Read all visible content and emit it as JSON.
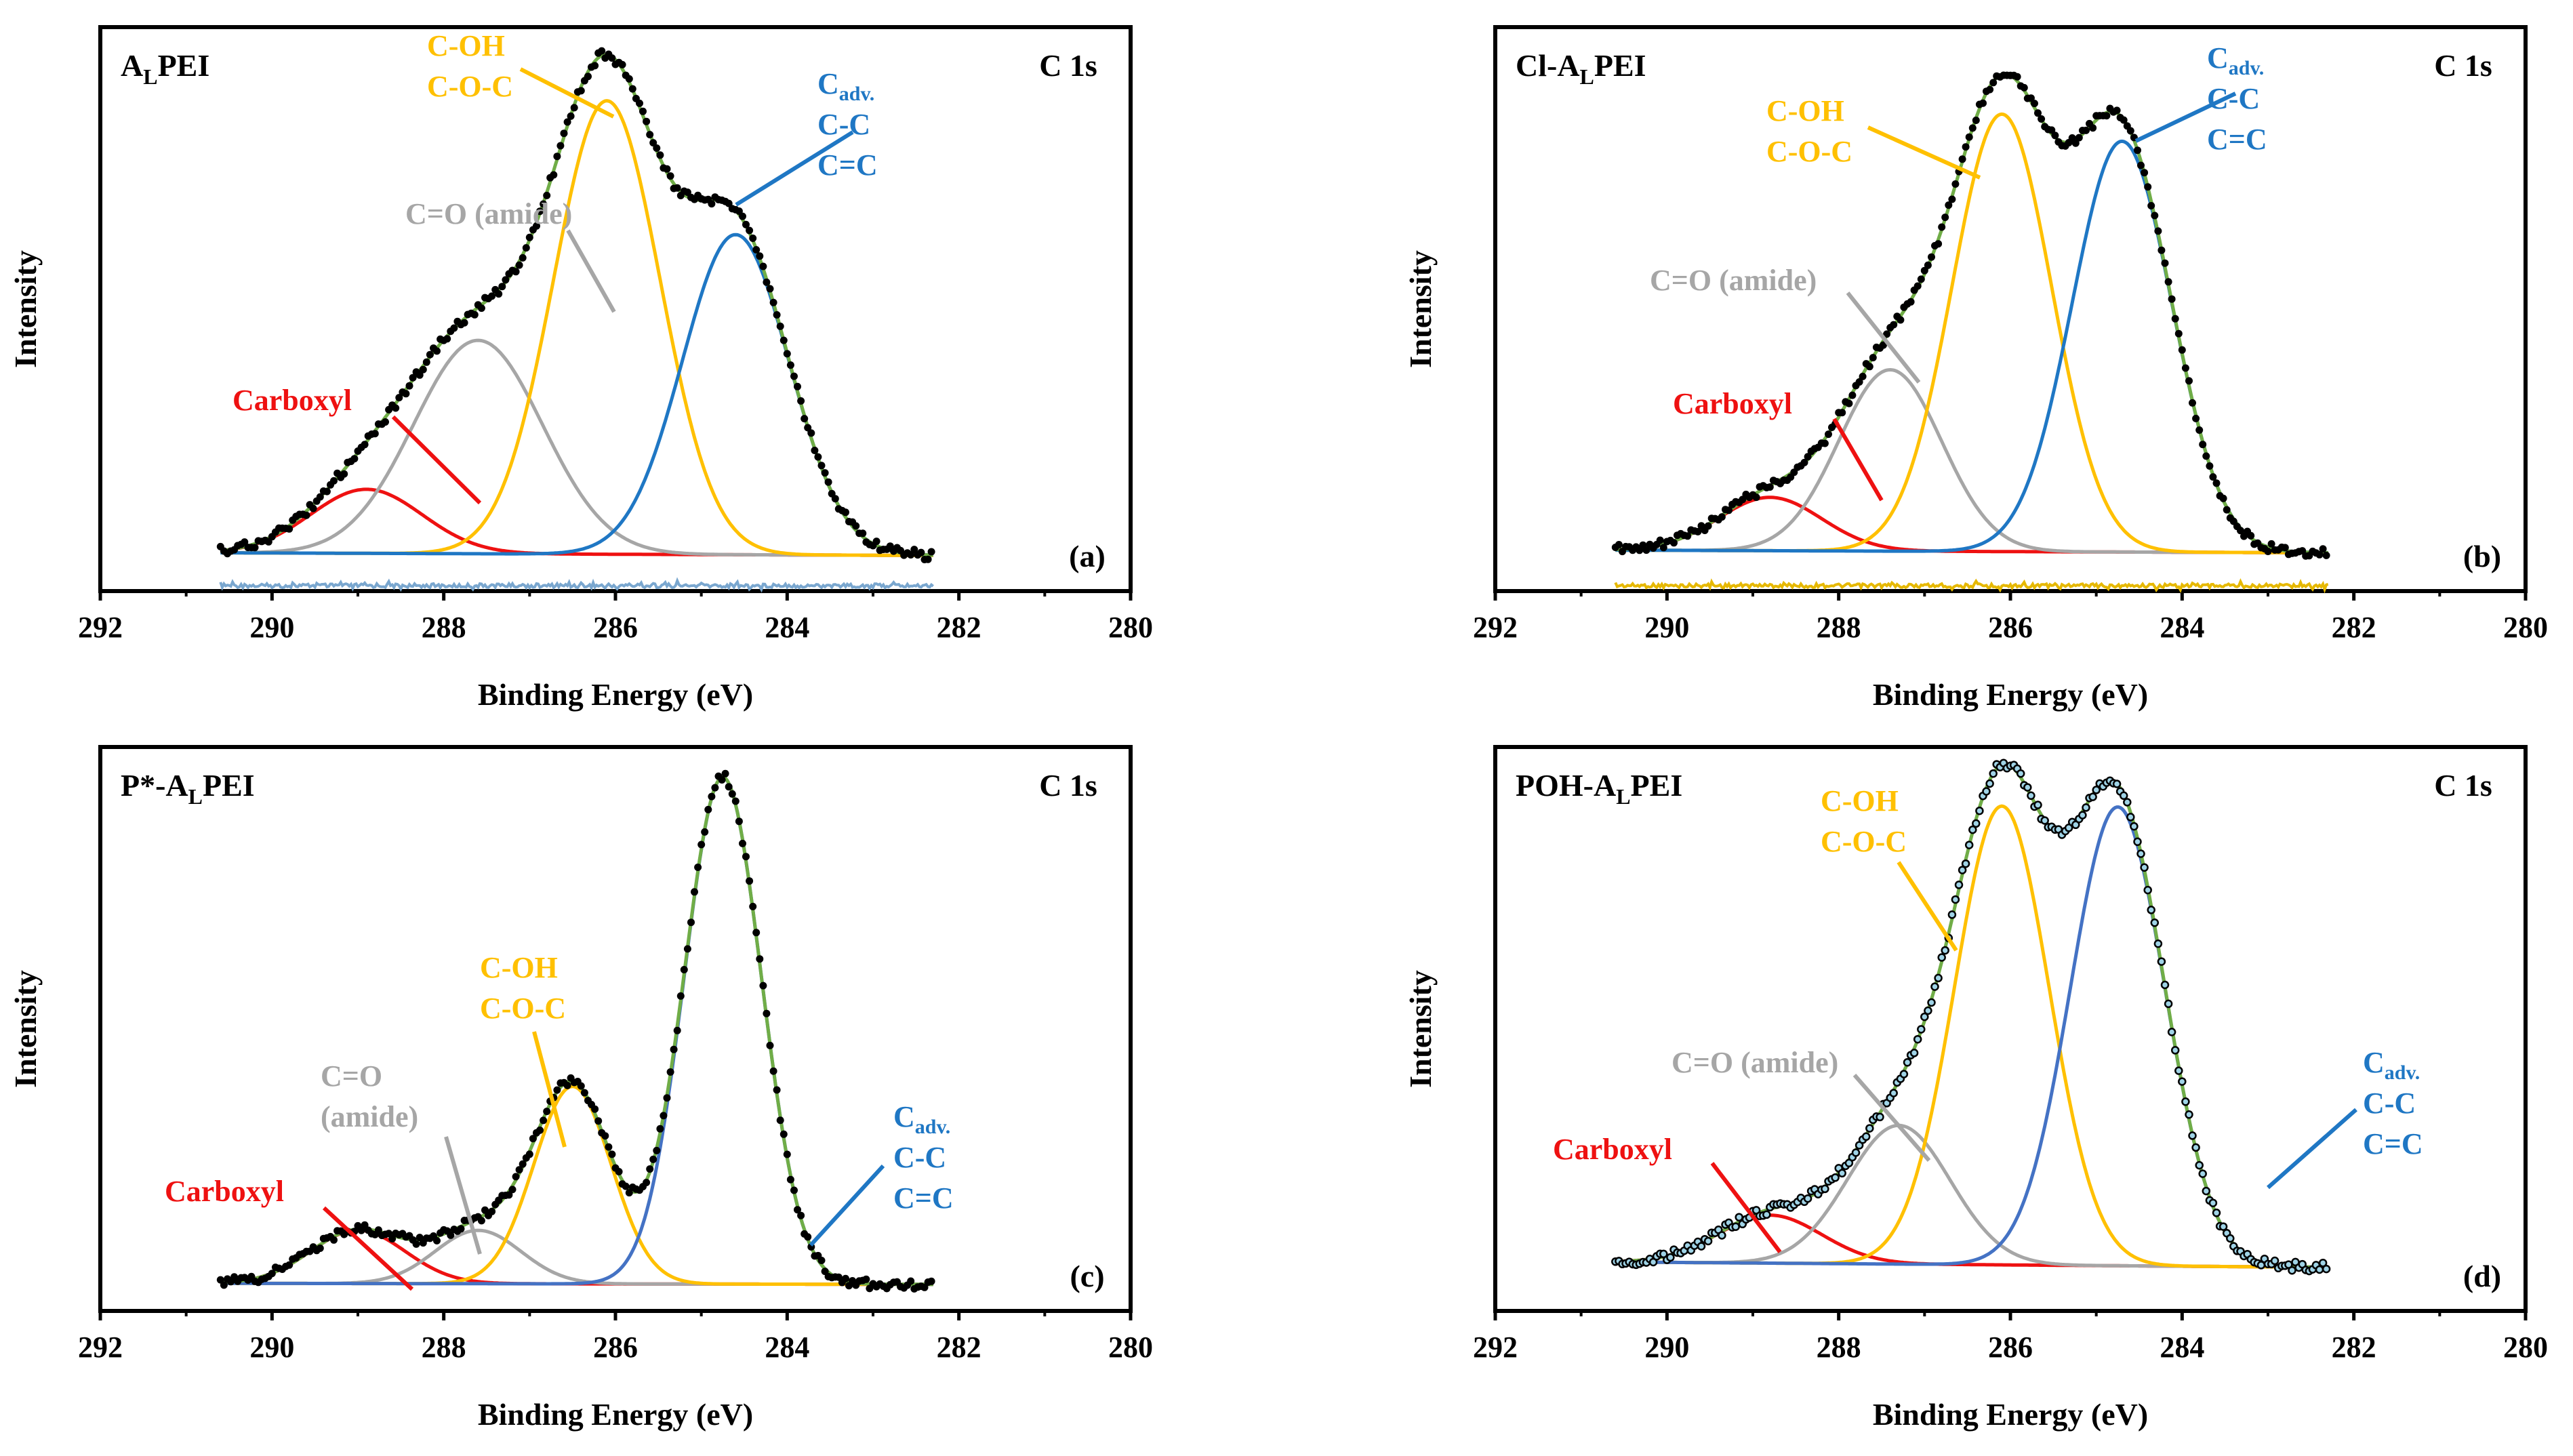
{
  "figure": {
    "colors": {
      "carboxyl": "#ee1111",
      "amide": "#a6a6a6",
      "coh": "#ffc000",
      "cc": "#1f77c4",
      "ccBlue2": "#4472c4",
      "envelope": "#70ad47",
      "data": "#000000",
      "axis": "#000000"
    },
    "xlabel": "Binding Energy (eV)",
    "ylabel": "Intensity",
    "core_level": "C 1s",
    "x_ticks": [
      "292",
      "290",
      "288",
      "286",
      "284",
      "282",
      "280"
    ]
  },
  "chart_data": [
    {
      "type": "line",
      "panel": "(a)",
      "title_main": "A",
      "title_sub": "L",
      "title_tail": "PEI",
      "title_prefix": "",
      "core_level": "C 1s",
      "xlim": [
        292,
        280
      ],
      "ylim": [
        0,
        1.0
      ],
      "x_range": [
        290.6,
        282.3
      ],
      "background": [
        0.04,
        0.035
      ],
      "residual_color": "#7aa7cf",
      "series": [
        {
          "name": "Carboxyl",
          "center": 288.9,
          "amp": 0.12,
          "sigma": 0.65,
          "color_key": "carboxyl"
        },
        {
          "name": "C=O (amide)",
          "center": 287.6,
          "amp": 0.4,
          "sigma": 0.75,
          "color_key": "amide"
        },
        {
          "name": "C-OH / C-O-C",
          "center": 286.1,
          "amp": 0.85,
          "sigma": 0.62,
          "color_key": "coh"
        },
        {
          "name": "Cadv. / C-C / C=C",
          "center": 284.6,
          "amp": 0.6,
          "sigma": 0.62,
          "color_key": "cc"
        }
      ],
      "labels": {
        "carboxyl": "Carboxyl",
        "amide": "C=O (amide)",
        "coh1": "C-OH",
        "coh2": "C-O-C",
        "cc_main": "C",
        "cc_sub": "adv.",
        "cc2": "C-C",
        "cc3": "C=C"
      }
    },
    {
      "type": "line",
      "panel": "(b)",
      "title_main": "A",
      "title_sub": "L",
      "title_tail": "PEI",
      "title_prefix": "Cl-",
      "core_level": "C 1s",
      "xlim": [
        292,
        280
      ],
      "ylim": [
        0,
        1.0
      ],
      "x_range": [
        290.6,
        282.3
      ],
      "background": [
        0.045,
        0.04
      ],
      "residual_color": "#e6b800",
      "series": [
        {
          "name": "Carboxyl",
          "center": 288.8,
          "amp": 0.1,
          "sigma": 0.6,
          "color_key": "carboxyl"
        },
        {
          "name": "C=O (amide)",
          "center": 287.4,
          "amp": 0.34,
          "sigma": 0.6,
          "color_key": "amide"
        },
        {
          "name": "C-OH / C-O-C",
          "center": 286.1,
          "amp": 0.82,
          "sigma": 0.58,
          "color_key": "coh"
        },
        {
          "name": "Cadv. / C-C / C=C",
          "center": 284.7,
          "amp": 0.77,
          "sigma": 0.58,
          "color_key": "cc"
        }
      ],
      "labels": {
        "carboxyl": "Carboxyl",
        "amide": "C=O (amide)",
        "coh1": "C-OH",
        "coh2": "C-O-C",
        "cc_main": "C",
        "cc_sub": "adv.",
        "cc2": "C-C",
        "cc3": "C=C"
      }
    },
    {
      "type": "line",
      "panel": "(c)",
      "title_main": "A",
      "title_sub": "L",
      "title_tail": "PEI",
      "title_prefix": "P*-",
      "core_level": "C 1s",
      "xlim": [
        292,
        280
      ],
      "ylim": [
        0,
        1.0
      ],
      "x_range": [
        290.6,
        282.3
      ],
      "background": [
        0.02,
        0.018
      ],
      "residual_color": "",
      "series": [
        {
          "name": "Carboxyl",
          "center": 289.0,
          "amp": 0.1,
          "sigma": 0.55,
          "color_key": "carboxyl"
        },
        {
          "name": "C=O (amide)",
          "center": 287.6,
          "amp": 0.1,
          "sigma": 0.5,
          "color_key": "amide"
        },
        {
          "name": "C-OH / C-O-C",
          "center": 286.5,
          "amp": 0.37,
          "sigma": 0.45,
          "color_key": "coh"
        },
        {
          "name": "Cadv. / C-C / C=C",
          "center": 284.75,
          "amp": 0.95,
          "sigma": 0.45,
          "color_key": "ccBlue2"
        }
      ],
      "labels": {
        "carboxyl": "Carboxyl",
        "amide": "C=O",
        "amide2": "(amide)",
        "coh1": "C-OH",
        "coh2": "C-O-C",
        "cc_main": "C",
        "cc_sub": "adv.",
        "cc2": "C-C",
        "cc3": "C=C"
      }
    },
    {
      "type": "line",
      "panel": "(d)",
      "title_main": "A",
      "title_sub": "L",
      "title_tail": "PEI",
      "title_prefix": "POH-",
      "core_level": "C 1s",
      "xlim": [
        292,
        280
      ],
      "ylim": [
        0,
        1.0
      ],
      "x_range": [
        290.6,
        282.3
      ],
      "background": [
        0.06,
        0.05
      ],
      "residual_color": "",
      "series": [
        {
          "name": "Carboxyl",
          "center": 288.8,
          "amp": 0.09,
          "sigma": 0.6,
          "color_key": "carboxyl"
        },
        {
          "name": "C=O (amide)",
          "center": 287.3,
          "amp": 0.26,
          "sigma": 0.6,
          "color_key": "amide"
        },
        {
          "name": "C-OH / C-O-C",
          "center": 286.1,
          "amp": 0.86,
          "sigma": 0.55,
          "color_key": "coh"
        },
        {
          "name": "Cadv. / C-C / C=C",
          "center": 284.75,
          "amp": 0.86,
          "sigma": 0.55,
          "color_key": "ccBlue2"
        }
      ],
      "labels": {
        "carboxyl": "Carboxyl",
        "amide": "C=O (amide)",
        "coh1": "C-OH",
        "coh2": "C-O-C",
        "cc_main": "C",
        "cc_sub": "adv.",
        "cc2": "C-C",
        "cc3": "C=C"
      }
    }
  ]
}
